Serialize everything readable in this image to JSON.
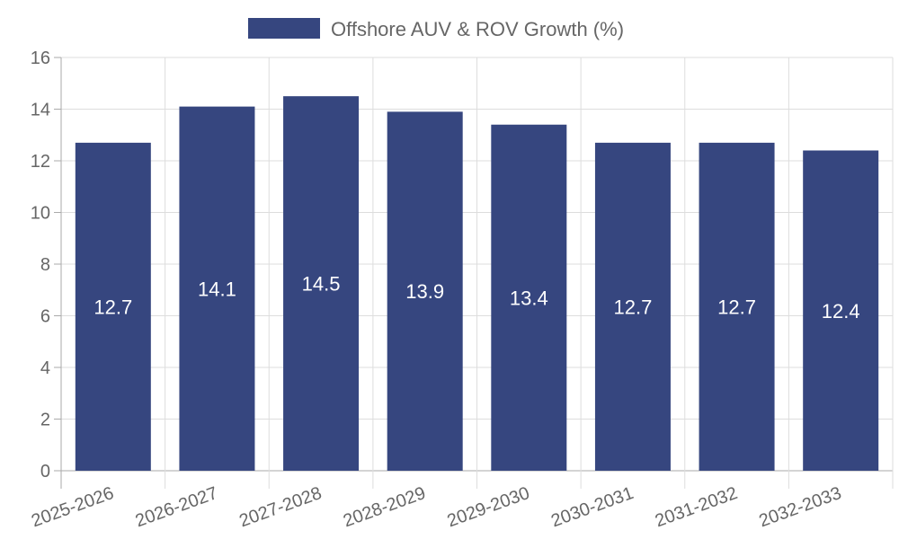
{
  "chart_data": {
    "type": "bar",
    "title": "",
    "xlabel": "",
    "ylabel": "",
    "legend": {
      "label": "Offshore AUV & ROV Growth (%)",
      "position": "top-center"
    },
    "categories": [
      "2025-2026",
      "2026-2027",
      "2027-2028",
      "2028-2029",
      "2029-2030",
      "2030-2031",
      "2031-2032",
      "2032-2033"
    ],
    "series": [
      {
        "name": "Offshore AUV & ROV Growth (%)",
        "values": [
          12.7,
          14.1,
          14.5,
          13.9,
          13.4,
          12.7,
          12.7,
          12.4
        ],
        "color": "#36467f"
      }
    ],
    "ylim": [
      0,
      16
    ],
    "yticks": [
      0,
      2,
      4,
      6,
      8,
      10,
      12,
      14,
      16
    ],
    "grid": true,
    "data_labels": true
  }
}
